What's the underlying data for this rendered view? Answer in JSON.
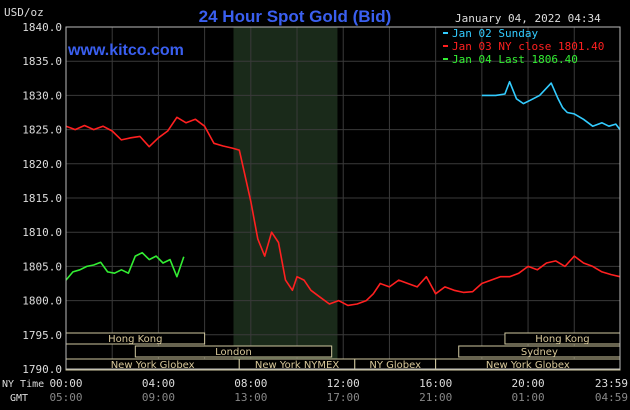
{
  "header": {
    "title": "24 Hour Spot Gold (Bid)",
    "unit": "USD/oz",
    "website": "www.kitco.com",
    "timestamp": "January 04, 2022 04:34"
  },
  "legend": [
    {
      "label": "Jan 02 Sunday",
      "color": "#33ccff"
    },
    {
      "label": "Jan 03 NY close 1801.40",
      "color": "#ff2020"
    },
    {
      "label": "Jan 04 Last 1806.40",
      "color": "#33ee33"
    }
  ],
  "time_rows": {
    "ny_label": "NY Time",
    "gmt_label": "GMT",
    "ny_ticks": [
      "00:00",
      "04:00",
      "08:00",
      "12:00",
      "16:00",
      "20:00",
      "23:59"
    ],
    "gmt_ticks": [
      "05:00",
      "09:00",
      "13:00",
      "17:00",
      "21:00",
      "01:00",
      "04:59"
    ]
  },
  "sessions": [
    {
      "label": "Hong Kong",
      "start": 0.0,
      "end": 6.0,
      "row": 0
    },
    {
      "label": "Hong Kong",
      "start": 19.0,
      "end": 23.98,
      "row": 0
    },
    {
      "label": "London",
      "start": 3.0,
      "end": 11.5,
      "row": 1
    },
    {
      "label": "Sydney",
      "start": 17.0,
      "end": 23.98,
      "row": 1
    },
    {
      "label": "New York Globex",
      "start": 0.0,
      "end": 7.5,
      "row": 2
    },
    {
      "label": "New York NYMEX",
      "start": 7.5,
      "end": 12.5,
      "row": 2
    },
    {
      "label": "NY Globex",
      "start": 12.5,
      "end": 16.0,
      "row": 2
    },
    {
      "label": "New York Globex",
      "start": 16.0,
      "end": 23.98,
      "row": 2
    }
  ],
  "chart_data": {
    "type": "line",
    "title": "24 Hour Spot Gold (Bid)",
    "ylabel": "USD/oz",
    "ylim": [
      1790.0,
      1840.0
    ],
    "yticks": [
      "1790.0",
      "1795.0",
      "1800.0",
      "1805.0",
      "1810.0",
      "1815.0",
      "1820.0",
      "1825.0",
      "1830.0",
      "1835.0",
      "1840.0"
    ],
    "xlim_hours_ny": [
      0,
      23.98
    ],
    "highlight_hours_ny": [
      7.25,
      11.75
    ],
    "grid": true,
    "series": [
      {
        "name": "Jan 02 Sunday",
        "color": "#33ccff",
        "x": [
          18.0,
          18.6,
          19.0,
          19.2,
          19.5,
          19.8,
          20.1,
          20.5,
          21.0,
          21.3,
          21.5,
          21.7,
          22.0,
          22.4,
          22.8,
          23.2,
          23.5,
          23.8,
          23.98
        ],
        "y": [
          1830.0,
          1830.0,
          1830.2,
          1832.0,
          1829.5,
          1828.8,
          1829.3,
          1830.0,
          1831.8,
          1829.5,
          1828.2,
          1827.5,
          1827.3,
          1826.5,
          1825.5,
          1826.0,
          1825.5,
          1825.8,
          1825.0
        ]
      },
      {
        "name": "Jan 03 NY close 1801.40",
        "color": "#ff2020",
        "x": [
          0.0,
          0.4,
          0.8,
          1.2,
          1.6,
          2.0,
          2.4,
          2.8,
          3.2,
          3.6,
          4.0,
          4.4,
          4.8,
          5.2,
          5.6,
          6.0,
          6.4,
          6.8,
          7.2,
          7.5,
          7.7,
          8.0,
          8.3,
          8.6,
          8.9,
          9.2,
          9.5,
          9.8,
          10.0,
          10.3,
          10.6,
          11.0,
          11.4,
          11.8,
          12.2,
          12.6,
          13.0,
          13.3,
          13.6,
          14.0,
          14.4,
          14.8,
          15.2,
          15.6,
          16.0,
          16.4,
          16.8,
          17.2,
          17.6,
          18.0,
          18.4,
          18.8,
          19.2,
          19.6,
          20.0,
          20.4,
          20.8,
          21.2,
          21.6,
          22.0,
          22.4,
          22.8,
          23.2,
          23.6,
          23.98
        ],
        "y": [
          1825.5,
          1825.0,
          1825.6,
          1825.0,
          1825.5,
          1824.8,
          1823.5,
          1823.8,
          1824.0,
          1822.5,
          1823.8,
          1824.8,
          1826.8,
          1826.0,
          1826.5,
          1825.5,
          1823.0,
          1822.6,
          1822.3,
          1822.0,
          1819.0,
          1814.5,
          1809.0,
          1806.5,
          1810.0,
          1808.5,
          1803.0,
          1801.5,
          1803.5,
          1803.0,
          1801.5,
          1800.5,
          1799.5,
          1800.0,
          1799.3,
          1799.5,
          1800.0,
          1801.0,
          1802.5,
          1802.0,
          1803.0,
          1802.5,
          1802.0,
          1803.5,
          1801.0,
          1802.0,
          1801.5,
          1801.2,
          1801.3,
          1802.5,
          1803.0,
          1803.5,
          1803.5,
          1804.0,
          1805.0,
          1804.5,
          1805.5,
          1805.8,
          1805.0,
          1806.5,
          1805.5,
          1805.0,
          1804.2,
          1803.8,
          1803.5
        ]
      },
      {
        "name": "Jan 04 Last 1806.40",
        "color": "#33ee33",
        "x": [
          0.0,
          0.3,
          0.6,
          0.9,
          1.2,
          1.5,
          1.8,
          2.1,
          2.4,
          2.7,
          3.0,
          3.3,
          3.6,
          3.9,
          4.2,
          4.5,
          4.8,
          5.1
        ],
        "y": [
          1803.0,
          1804.2,
          1804.5,
          1805.0,
          1805.2,
          1805.6,
          1804.2,
          1804.0,
          1804.5,
          1804.0,
          1806.5,
          1807.0,
          1806.0,
          1806.5,
          1805.5,
          1806.0,
          1803.5,
          1806.4
        ]
      }
    ]
  }
}
